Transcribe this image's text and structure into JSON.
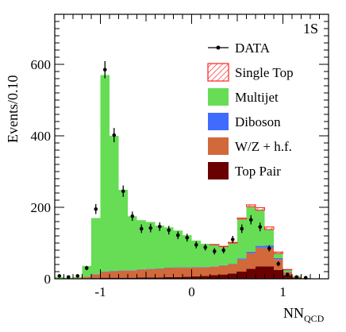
{
  "chart_data": {
    "type": "bar",
    "stacked": true,
    "title": "",
    "panel_label": "1S",
    "xlabel_main": "NN",
    "xlabel_sub": "QCD",
    "ylabel": "Events/0.10",
    "xlim": [
      -1.5,
      1.5
    ],
    "ylim": [
      0,
      740
    ],
    "xticks": [
      -1,
      0,
      1
    ],
    "xtick_labels": [
      "-1",
      "0",
      "1"
    ],
    "yticks": [
      0,
      200,
      400,
      600
    ],
    "ytick_labels": [
      "0",
      "200",
      "400",
      "600"
    ],
    "grid": false,
    "legend_position": "top-right",
    "bin_edges": [
      -1.5,
      -1.4,
      -1.3,
      -1.2,
      -1.1,
      -1.0,
      -0.9,
      -0.8,
      -0.7,
      -0.6,
      -0.5,
      -0.4,
      -0.3,
      -0.2,
      -0.1,
      0.0,
      0.1,
      0.2,
      0.3,
      0.4,
      0.5,
      0.6,
      0.7,
      0.8,
      0.9,
      1.0,
      1.1,
      1.2,
      1.3,
      1.4,
      1.5
    ],
    "series": [
      {
        "name": "Top Pair",
        "color": "#6b0000",
        "hatch": false,
        "values": [
          0,
          0,
          0,
          1,
          2,
          3,
          3,
          3,
          3,
          4,
          4,
          4,
          5,
          5,
          6,
          7,
          8,
          10,
          12,
          15,
          20,
          28,
          35,
          35,
          25,
          10,
          3,
          1,
          0,
          0
        ]
      },
      {
        "name": "W/Z + h.f.",
        "color": "#d2693a",
        "hatch": false,
        "values": [
          0,
          0,
          2,
          5,
          10,
          16,
          18,
          20,
          20,
          22,
          23,
          24,
          25,
          26,
          25,
          25,
          24,
          24,
          25,
          26,
          34,
          44,
          52,
          52,
          30,
          8,
          2,
          1,
          0,
          0
        ]
      },
      {
        "name": "Diboson",
        "color": "#3f6bff",
        "hatch": false,
        "values": [
          0,
          0,
          0,
          0,
          1,
          1,
          1,
          1,
          1,
          1,
          1,
          1,
          1,
          1,
          1,
          1,
          1,
          1,
          1,
          1,
          3,
          4,
          5,
          6,
          3,
          1,
          0,
          0,
          0,
          0
        ]
      },
      {
        "name": "Multijet",
        "color": "#66dd55",
        "hatch": false,
        "values": [
          5,
          3,
          3,
          30,
          157,
          550,
          378,
          225,
          151,
          137,
          131,
          120,
          113,
          103,
          90,
          74,
          65,
          60,
          52,
          58,
          110,
          126,
          100,
          45,
          13,
          6,
          3,
          0,
          0,
          0
        ]
      },
      {
        "name": "Single Top",
        "color": "#ff2020",
        "hatch": true,
        "values": [
          0,
          0,
          0,
          0,
          0,
          0,
          0,
          0,
          0,
          0,
          0,
          0,
          0,
          0,
          0,
          0,
          0,
          1,
          1,
          2,
          3,
          5,
          7,
          7,
          4,
          1,
          0,
          0,
          0,
          0
        ]
      }
    ],
    "data_points": {
      "name": "DATA",
      "x": [
        -1.45,
        -1.35,
        -1.25,
        -1.15,
        -1.05,
        -0.95,
        -0.85,
        -0.75,
        -0.65,
        -0.55,
        -0.45,
        -0.35,
        -0.25,
        -0.15,
        -0.05,
        0.05,
        0.15,
        0.25,
        0.35,
        0.45,
        0.55,
        0.65,
        0.75,
        0.85,
        0.95,
        1.05,
        1.15,
        1.25,
        1.35,
        1.45
      ],
      "y": [
        8,
        5,
        8,
        30,
        195,
        585,
        402,
        245,
        175,
        140,
        142,
        146,
        136,
        122,
        115,
        95,
        88,
        77,
        80,
        110,
        140,
        165,
        145,
        85,
        42,
        12,
        5,
        3,
        0,
        0
      ],
      "err": [
        3,
        2,
        3,
        6,
        14,
        24,
        20,
        16,
        13,
        12,
        12,
        12,
        12,
        11,
        11,
        10,
        9,
        9,
        9,
        10,
        12,
        13,
        12,
        9,
        7,
        3,
        2,
        2,
        0,
        0
      ]
    },
    "legend_entries": [
      {
        "label": "DATA",
        "kind": "marker"
      },
      {
        "label": "Single Top",
        "kind": "hatched",
        "color": "#ff2020"
      },
      {
        "label": "Multijet",
        "kind": "box",
        "color": "#66dd55"
      },
      {
        "label": "Diboson",
        "kind": "box",
        "color": "#3f6bff"
      },
      {
        "label": "W/Z + h.f.",
        "kind": "box",
        "color": "#d2693a"
      },
      {
        "label": "Top Pair",
        "kind": "box",
        "color": "#6b0000"
      }
    ]
  }
}
